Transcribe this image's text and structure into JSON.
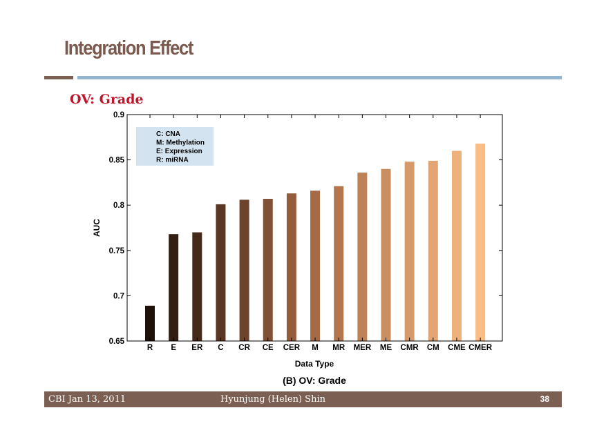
{
  "slide": {
    "title": "Integration Effect",
    "subtitle": "OV: Grade"
  },
  "colors": {
    "title": "#7a5a4e",
    "subtitle": "#c0142a",
    "rule_left": "#7b5f52",
    "rule_right": "#93b5cf",
    "footer_bg": "#7b5f52",
    "legend_bg": "#d3e3ef",
    "bar_start": "#1e1109",
    "bar_mid": "#a76a46",
    "bar_end": "#f9bd85"
  },
  "footer": {
    "left": "CBI Jan 13, 2011",
    "center": "Hyunjung (Helen) Shin",
    "page": "38"
  },
  "chart_data": {
    "type": "bar",
    "categories": [
      "R",
      "E",
      "ER",
      "C",
      "CR",
      "CE",
      "CER",
      "M",
      "MR",
      "MER",
      "ME",
      "CMR",
      "CM",
      "CME",
      "CMER"
    ],
    "values": [
      0.689,
      0.768,
      0.77,
      0.801,
      0.806,
      0.807,
      0.813,
      0.816,
      0.821,
      0.836,
      0.84,
      0.848,
      0.849,
      0.86,
      0.868
    ],
    "xlabel": "Data Type",
    "ylabel": "AUC",
    "ylim": [
      0.65,
      0.9
    ],
    "yticks": [
      "0.65",
      "0.7",
      "0.75",
      "0.8",
      "0.85",
      "0.9"
    ],
    "caption": "(B) OV: Grade",
    "legend": [
      "C: CNA",
      "M: Methylation",
      "E: Expression",
      "R: miRNA"
    ],
    "legend_position": "top-left",
    "grid": false
  }
}
